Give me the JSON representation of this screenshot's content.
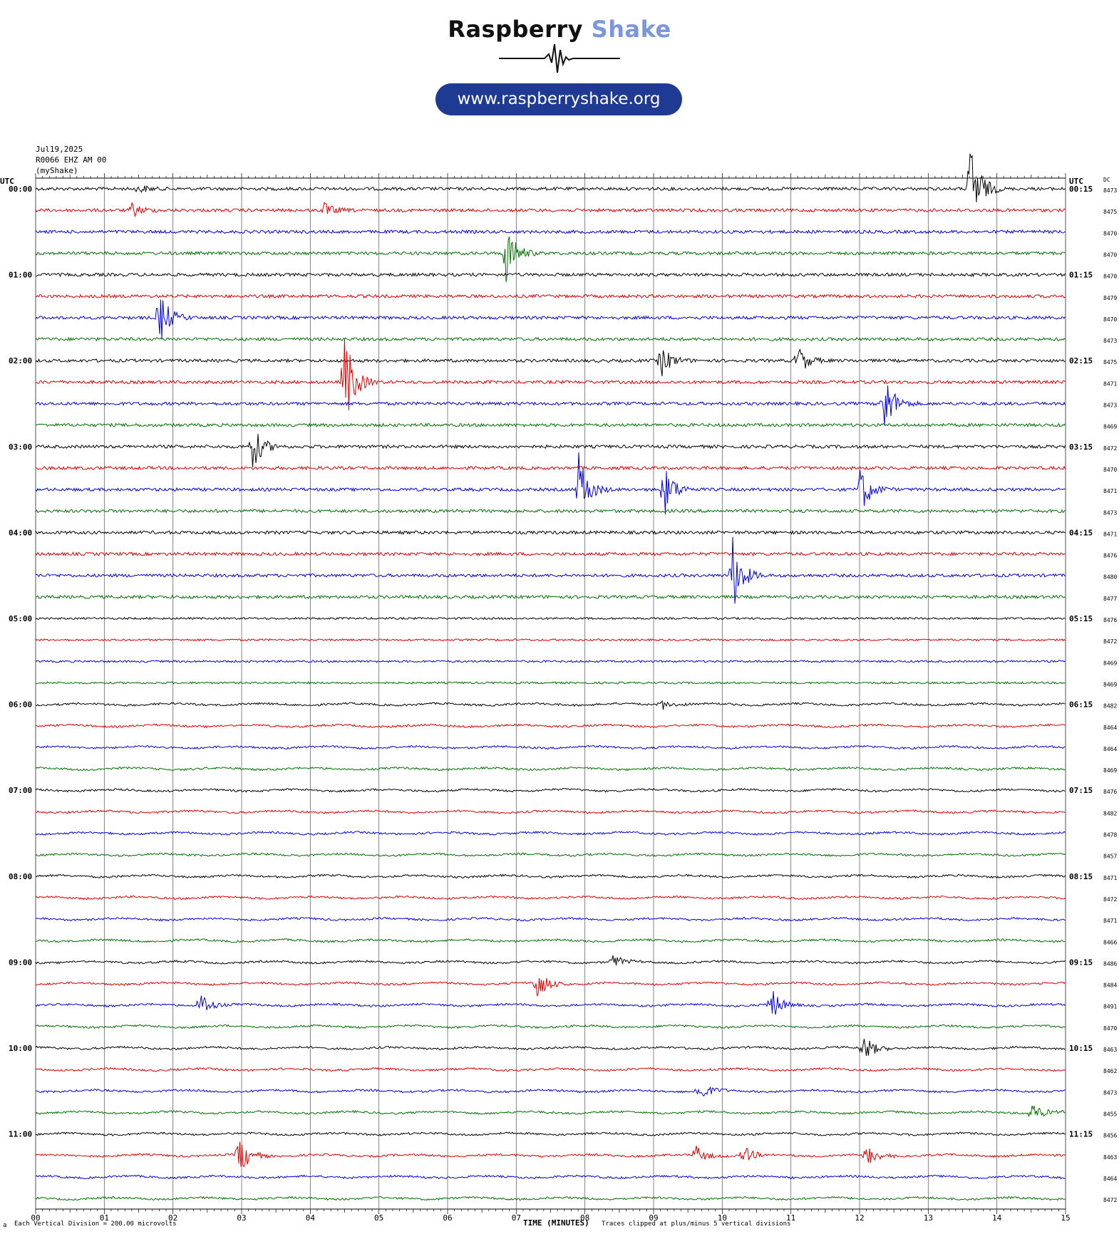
{
  "brand": {
    "name_part1": "Raspberry",
    "name_part2": " Shake",
    "url": "www.raspberryshake.org",
    "colors": {
      "dark": "#111111",
      "accent": "#7b96dd",
      "pill": "#1f3a93"
    },
    "logo_icon": "seismic-wave-icon"
  },
  "header": {
    "date": "Jul19,2025",
    "station": "R0066 EHZ AM 00",
    "source": "(myShake)",
    "utc_left": "UTC",
    "utc_right": "UTC",
    "dc_label": "DC"
  },
  "footer": {
    "division": "Each Vertical Division =  200.00 microvolts",
    "clipped": "Traces clipped at plus/minus 5 vertical divisions",
    "corner": "a"
  },
  "chart_data": {
    "type": "line",
    "title": "",
    "xlabel": "TIME (MINUTES)",
    "ylabel": "",
    "xlim": [
      0,
      15
    ],
    "x_ticks": [
      "00",
      "01",
      "02",
      "03",
      "04",
      "05",
      "06",
      "07",
      "08",
      "09",
      "10",
      "11",
      "12",
      "13",
      "14",
      "15"
    ],
    "grid": true,
    "trace_colors": [
      "#000000",
      "#e00000",
      "#0000e0",
      "#007000"
    ],
    "left_labels": [
      "00:00",
      "01:00",
      "02:00",
      "03:00",
      "04:00",
      "05:00",
      "06:00",
      "07:00",
      "08:00",
      "09:00",
      "10:00",
      "11:00"
    ],
    "right_labels": [
      "00:15",
      "01:15",
      "02:15",
      "03:15",
      "04:15",
      "05:15",
      "06:15",
      "07:15",
      "08:15",
      "09:15",
      "10:15",
      "11:15"
    ],
    "dc_values": [
      "8473",
      "8475",
      "8470",
      "8470",
      "8470",
      "8479",
      "8470",
      "8473",
      "8475",
      "8471",
      "8473",
      "8469",
      "8472",
      "8470",
      "8471",
      "8473",
      "8471",
      "8476",
      "8480",
      "8477",
      "8476",
      "8472",
      "8469",
      "8469",
      "8482",
      "8464",
      "8464",
      "8469",
      "8476",
      "8482",
      "8478",
      "8457",
      "8471",
      "8472",
      "8471",
      "8466",
      "8486",
      "8484",
      "8491",
      "8470",
      "8463",
      "8462",
      "8473",
      "8455",
      "8456",
      "8463",
      "8464",
      "8472"
    ],
    "events": [
      {
        "row": 0,
        "minute": 13.6,
        "amp": 80
      },
      {
        "row": 0,
        "minute": 1.5,
        "amp": 6
      },
      {
        "row": 1,
        "minute": 1.4,
        "amp": 10
      },
      {
        "row": 1,
        "minute": 4.2,
        "amp": 10
      },
      {
        "row": 3,
        "minute": 6.85,
        "amp": 45
      },
      {
        "row": 6,
        "minute": 1.8,
        "amp": 42
      },
      {
        "row": 8,
        "minute": 9.1,
        "amp": 25
      },
      {
        "row": 8,
        "minute": 11.1,
        "amp": 22
      },
      {
        "row": 9,
        "minute": 4.5,
        "amp": 70
      },
      {
        "row": 10,
        "minute": 12.35,
        "amp": 50
      },
      {
        "row": 12,
        "minute": 3.15,
        "amp": 35
      },
      {
        "row": 14,
        "minute": 7.9,
        "amp": 55
      },
      {
        "row": 14,
        "minute": 9.15,
        "amp": 40
      },
      {
        "row": 14,
        "minute": 12.0,
        "amp": 40
      },
      {
        "row": 18,
        "minute": 10.15,
        "amp": 55
      },
      {
        "row": 24,
        "minute": 9.1,
        "amp": 8
      },
      {
        "row": 36,
        "minute": 8.4,
        "amp": 10
      },
      {
        "row": 37,
        "minute": 7.3,
        "amp": 28
      },
      {
        "row": 38,
        "minute": 2.4,
        "amp": 20
      },
      {
        "row": 38,
        "minute": 10.7,
        "amp": 26
      },
      {
        "row": 40,
        "minute": 12.05,
        "amp": 22
      },
      {
        "row": 42,
        "minute": 9.65,
        "amp": 18
      },
      {
        "row": 43,
        "minute": 14.5,
        "amp": 16
      },
      {
        "row": 45,
        "minute": 2.95,
        "amp": 35
      },
      {
        "row": 45,
        "minute": 9.6,
        "amp": 15
      },
      {
        "row": 45,
        "minute": 10.3,
        "amp": 14
      },
      {
        "row": 45,
        "minute": 12.1,
        "amp": 20
      }
    ]
  }
}
